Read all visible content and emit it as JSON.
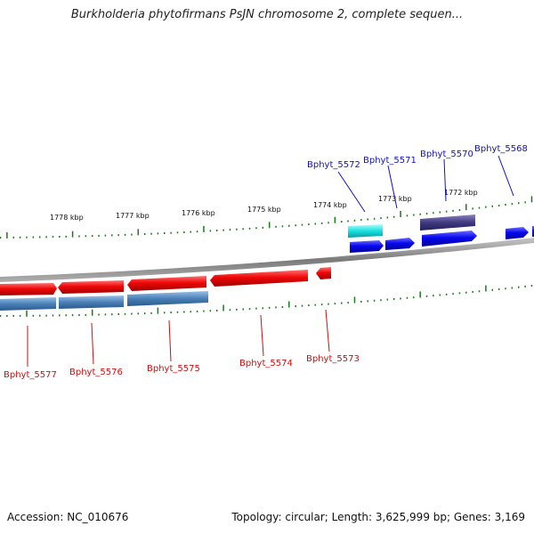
{
  "title": "Burkholderia phytofirmans PsJN chromosome 2, complete sequen...",
  "footer": {
    "accession": "Accession: NC_010676",
    "summary": "Topology: circular; Length: 3,625,999 bp; Genes: 3,169"
  },
  "kbp_labels": [
    "1778 kbp",
    "1777 kbp",
    "1776 kbp",
    "1775 kbp",
    "1774 kbp",
    "1773 kbp",
    "1772 kbp"
  ],
  "genes_top": [
    "Bphyt_5572",
    "Bphyt_5571",
    "Bphyt_5570",
    "Bphyt_5568"
  ],
  "genes_bottom": [
    "Bphyt_5577",
    "Bphyt_5576",
    "Bphyt_5575",
    "Bphyt_5574",
    "Bphyt_5573"
  ],
  "colors": {
    "forward_cds": "#0a0aee",
    "reverse_cds": "#ee0a0a",
    "backbone": "#8a8a8a",
    "tick": "#1a7a1a",
    "cyan_feature": "#19e0e0",
    "purple_feature": "#403a80",
    "steel_feature": "#4a80b8"
  }
}
